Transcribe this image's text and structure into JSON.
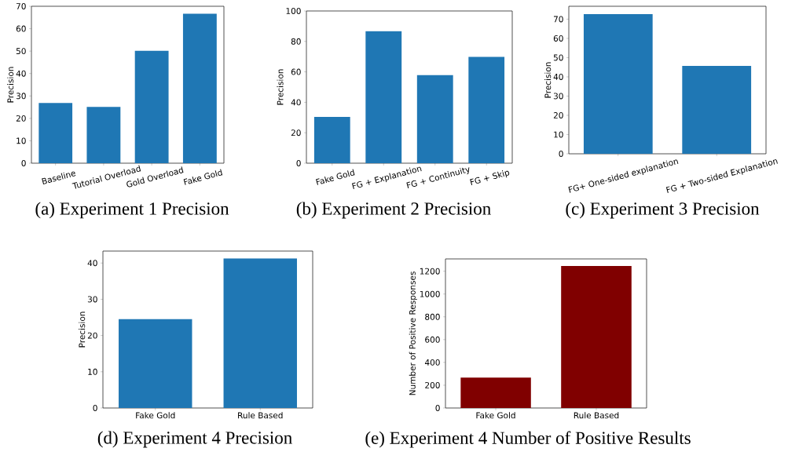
{
  "chart_data": [
    {
      "type": "bar",
      "title": "(a) Experiment 1 Precision",
      "ylabel": "Precision",
      "categories": [
        "Baseline",
        "Tutorial Overload",
        "Gold Overload",
        "Fake Gold"
      ],
      "values": [
        26.9,
        25.1,
        50.1,
        66.7
      ],
      "color": "#1f77b4",
      "ylim": [
        0,
        70
      ],
      "yticks": [
        0,
        10,
        20,
        30,
        40,
        50,
        60,
        70
      ]
    },
    {
      "type": "bar",
      "title": "(b) Experiment 2 Precision",
      "ylabel": "Precision",
      "categories": [
        "Fake Gold",
        "FG + Explanation",
        "FG + Continuity",
        "FG + Skip"
      ],
      "values": [
        30.4,
        86.7,
        57.9,
        69.8
      ],
      "color": "#1f77b4",
      "ylim": [
        0,
        100
      ],
      "yticks": [
        0,
        20,
        40,
        60,
        80,
        100
      ]
    },
    {
      "type": "bar",
      "title": "(c) Experiment 3 Precision",
      "ylabel": "Precision",
      "categories": [
        "FG+ One-sided explanation",
        "FG + Two-sided Explanation"
      ],
      "values": [
        72.6,
        45.7
      ],
      "color": "#1f77b4",
      "ylim": [
        0,
        76.7
      ],
      "yticks": [
        0,
        10,
        20,
        30,
        40,
        50,
        60,
        70
      ]
    },
    {
      "type": "bar",
      "title": "(d) Experiment 4 Precision",
      "ylabel": "Precision",
      "categories": [
        "Fake Gold",
        "Rule Based"
      ],
      "values": [
        24.5,
        41.3
      ],
      "color": "#1f77b4",
      "ylim": [
        0,
        43.3
      ],
      "yticks": [
        0,
        10,
        20,
        30,
        40
      ]
    },
    {
      "type": "bar",
      "title": "(e) Experiment 4 Number of Positive Results",
      "ylabel": "Number of Positive Responses",
      "categories": [
        "Fake Gold",
        "Rule Based"
      ],
      "values": [
        267,
        1246
      ],
      "color": "#800000",
      "ylim": [
        0,
        1308
      ],
      "yticks": [
        0,
        200,
        400,
        600,
        800,
        1000,
        1200
      ]
    }
  ]
}
